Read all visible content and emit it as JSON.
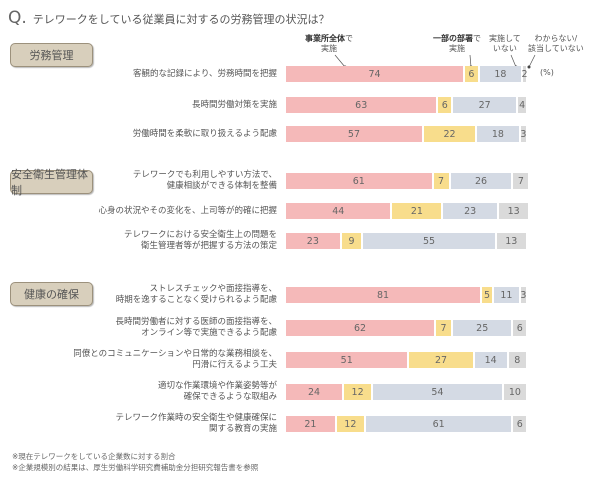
{
  "chart_data": {
    "type": "bar",
    "orientation": "horizontal",
    "stacked": true,
    "title": "テレワークをしている従業員に対するの労務管理の状況は？",
    "title_prefix": "Q.",
    "unit": "(%)",
    "xlim": [
      0,
      100
    ],
    "grid": false,
    "legend_placement": "top-right (callouts)",
    "series": [
      {
        "name_bold": "事業所全体",
        "name_rest": "で",
        "name_line2": "実施",
        "color": "#f5b9b9"
      },
      {
        "name_bold": "一部の部署",
        "name_rest": "で",
        "name_line2": "実施",
        "color": "#f8dd8c"
      },
      {
        "name_bold": "",
        "name_rest": "実施して",
        "name_line2": "いない",
        "color": "#d4dae4"
      },
      {
        "name_bold": "",
        "name_rest": "わからない/",
        "name_line2": "該当していない",
        "color": "#dadada"
      }
    ],
    "groups": [
      {
        "label": "労務管理",
        "items": [
          {
            "label": [
              "客観的な記録により、労務時間を把握"
            ],
            "values": [
              74,
              6,
              18,
              2
            ]
          },
          {
            "label": [
              "長時間労働対策を実施"
            ],
            "values": [
              63,
              6,
              27,
              4
            ]
          },
          {
            "label": [
              "労働時間を柔軟に取り扱えるよう配慮"
            ],
            "values": [
              57,
              22,
              18,
              3
            ]
          }
        ]
      },
      {
        "label": "安全衛生管理体制",
        "items": [
          {
            "label": [
              "テレワークでも利用しやすい方法で、",
              "健康相談ができる体制を整備"
            ],
            "values": [
              61,
              7,
              26,
              7
            ]
          },
          {
            "label": [
              "心身の状況やその変化を、上司等が的確に把握"
            ],
            "values": [
              44,
              21,
              23,
              13
            ]
          },
          {
            "label": [
              "テレワークにおける安全衛生上の問題を",
              "衛生管理者等が把握する方法の策定"
            ],
            "values": [
              23,
              9,
              55,
              13
            ]
          }
        ]
      },
      {
        "label": "健康の確保",
        "items": [
          {
            "label": [
              "ストレスチェックや面接指導を、",
              "時期を逸することなく受けられるよう配慮"
            ],
            "values": [
              81,
              5,
              11,
              3
            ]
          },
          {
            "label": [
              "長時間労働者に対する医師の面接指導を、",
              "オンライン等で実施できるよう配慮"
            ],
            "values": [
              62,
              7,
              25,
              6
            ]
          },
          {
            "label": [
              "同僚とのコミュニケーションや日常的な業務相談を、",
              "円滑に行えるよう工夫"
            ],
            "values": [
              51,
              27,
              14,
              8
            ]
          },
          {
            "label": [
              "適切な作業環境や作業姿勢等が",
              "確保できるような取組み"
            ],
            "values": [
              24,
              12,
              54,
              10
            ]
          },
          {
            "label": [
              "テレワーク作業時の安全衛生や健康確保に",
              "関する教育の実施"
            ],
            "values": [
              21,
              12,
              61,
              6
            ]
          }
        ]
      }
    ]
  },
  "notes": [
    "※現在テレワークをしている企業数に対する割合",
    "※企業規模別の結果は、厚生労働科学研究費補助金分担研究報告書を参照"
  ]
}
